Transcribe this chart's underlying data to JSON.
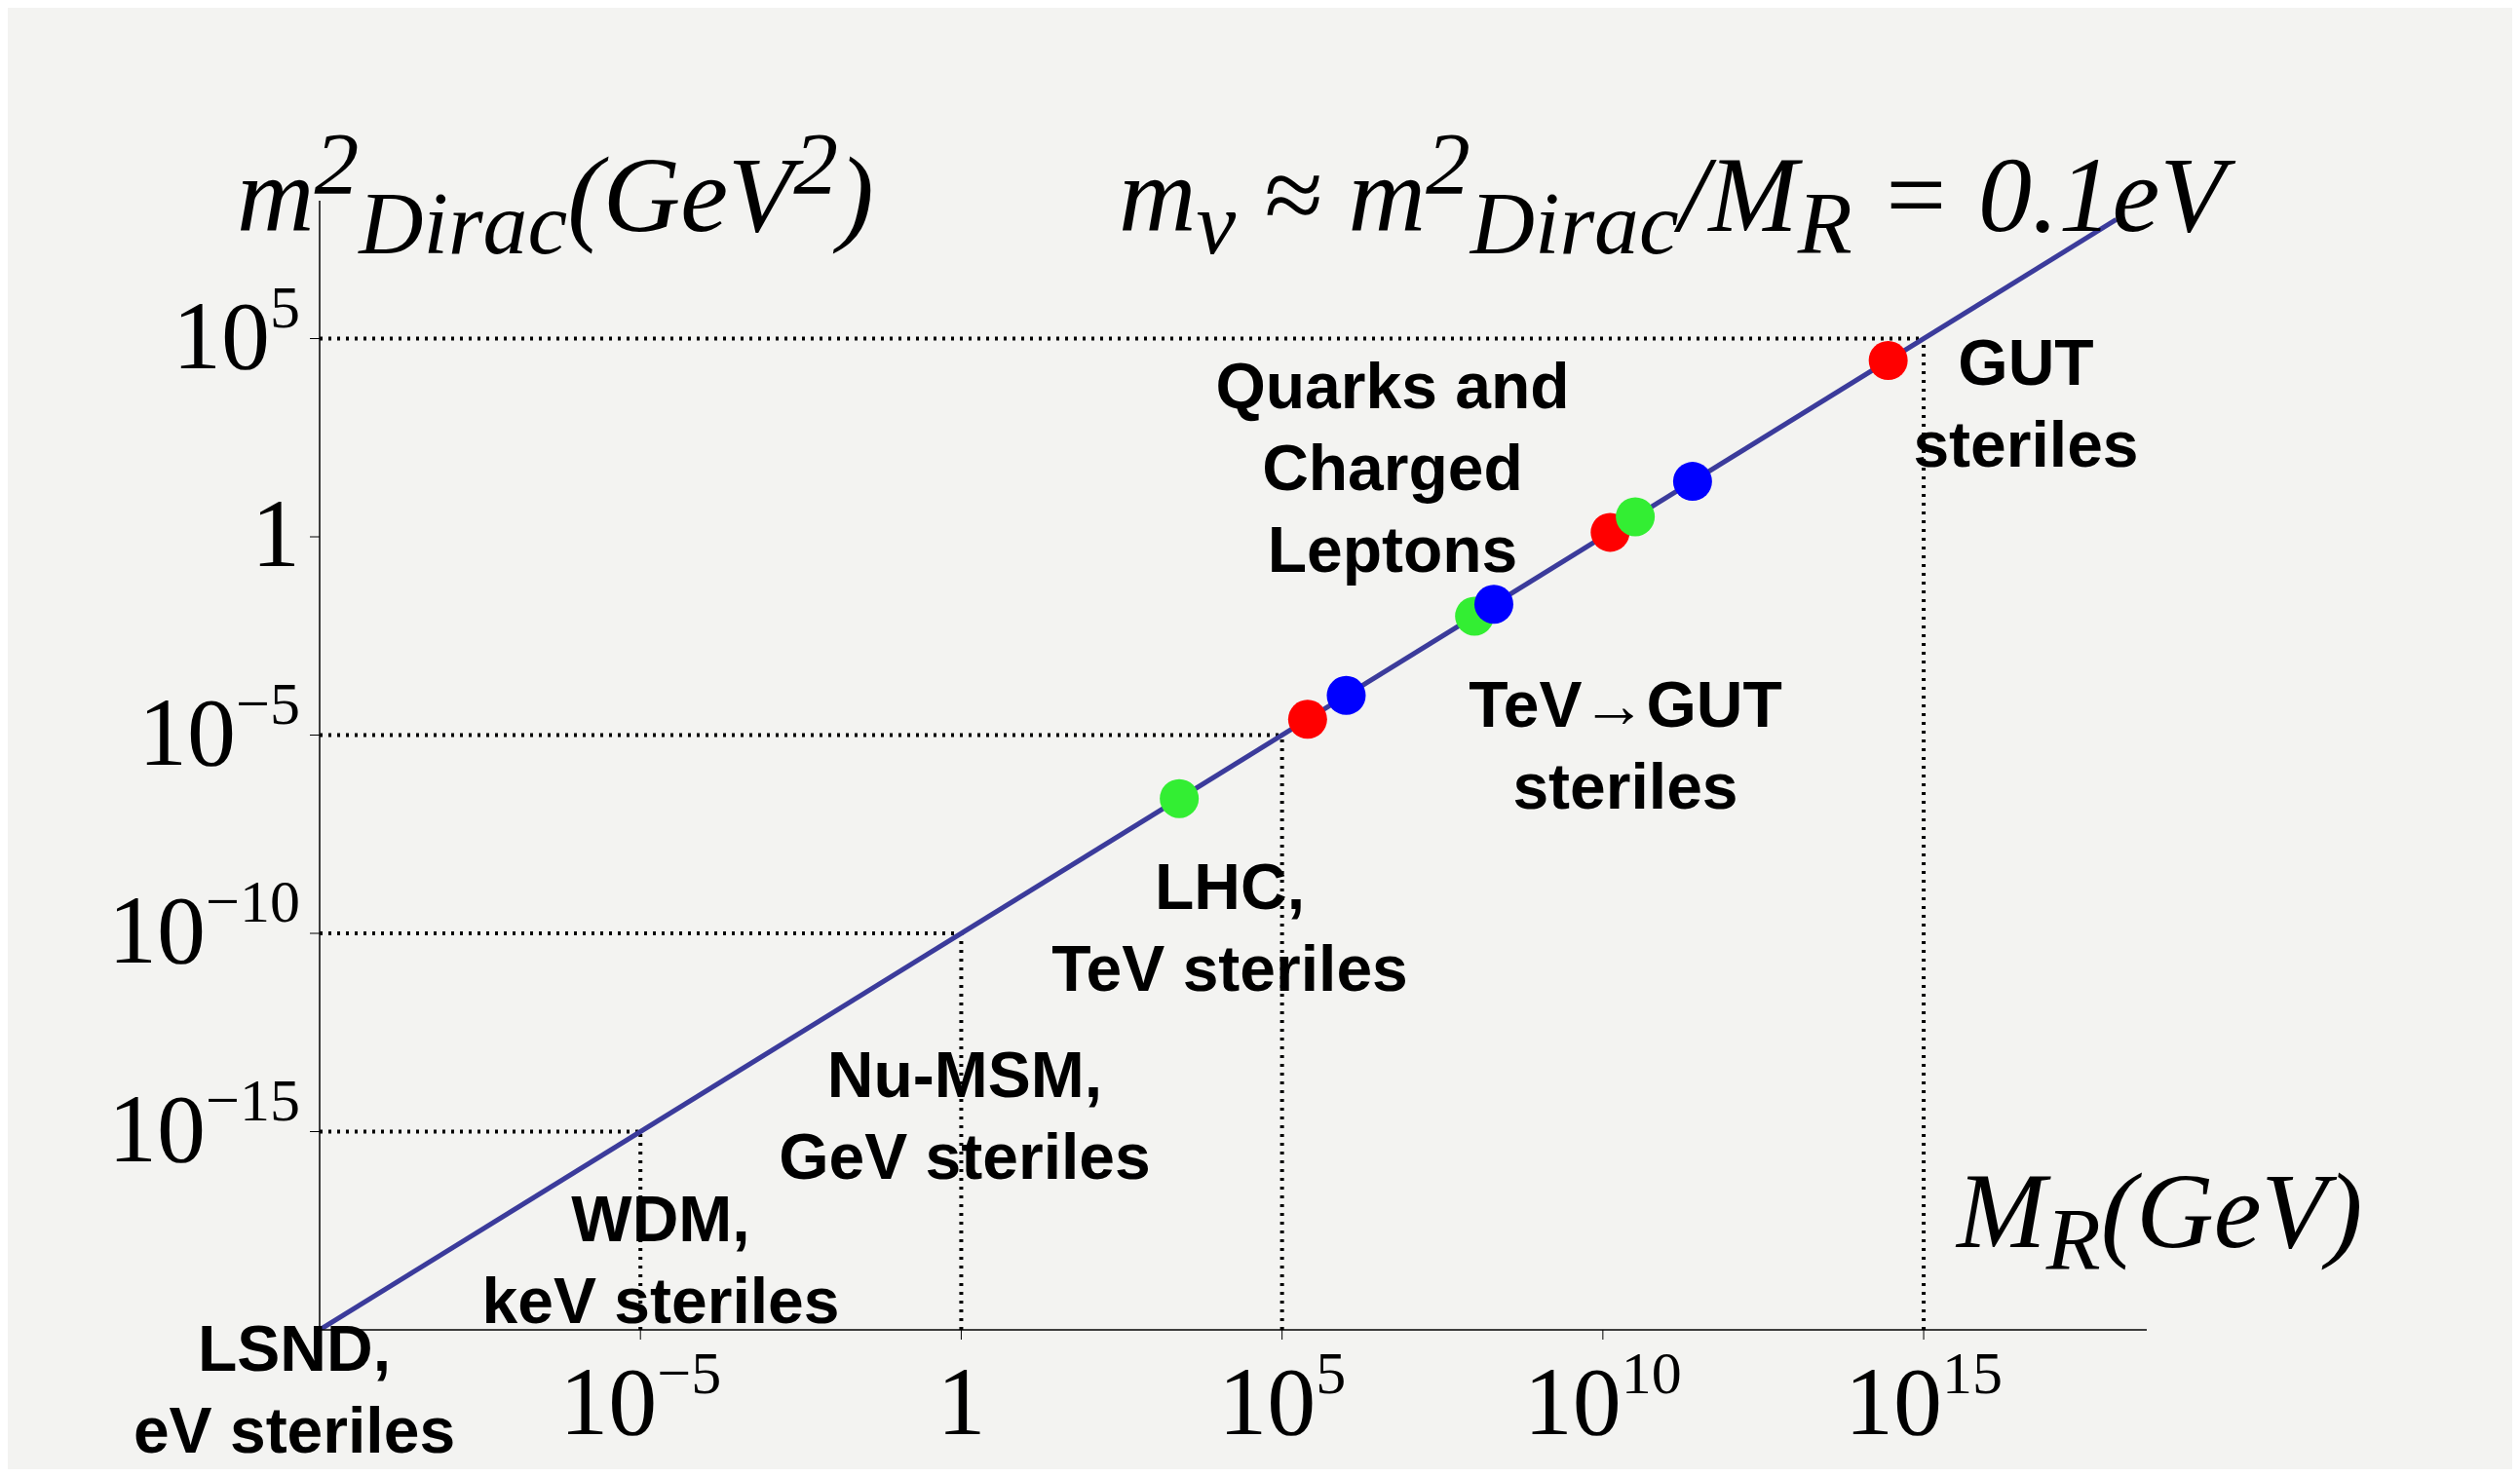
{
  "chart_data": {
    "type": "line",
    "title": "m$_{ν}$ ≈ m$^{2}$$_{Dirac}$/M$_{R}$ = 0.1eV",
    "xlabel": "M$_{R}$(GeV)",
    "ylabel": "m$^{2}$$_{Dirac}$(GeV$^{2}$)",
    "log": "xy",
    "xlim": [
      1e-10,
      3e+18
    ],
    "ylim": [
      1e-20,
      300000000.0
    ],
    "xticks": [
      {
        "value": 1e-05,
        "label": "10$^{−5}$"
      },
      1,
      {
        "value": 100000,
        "label": "10$^{5}$"
      },
      {
        "value": 10000000000,
        "label": "10$^{10}$"
      },
      {
        "value": 1000000000000000.0,
        "label": "10$^{15}$"
      }
    ],
    "yticks": [
      {
        "value": 1e-15,
        "label": "10$^{−15}$"
      },
      {
        "value": 1e-10,
        "label": "10$^{−10}$"
      },
      {
        "value": 1e-05,
        "label": "10$^{−5}$"
      },
      1,
      {
        "value": 100000,
        "label": "10$^{5}$"
      }
    ],
    "series": [
      {
        "color": "#3b3b9b",
        "marker": "none",
        "line_style": "solid",
        "x": [
          1e-10,
          1e+18
        ],
        "values": [
          1e-20,
          100000000.0
        ]
      },
      {
        "type": "scatter",
        "color": "#ff0000",
        "marker": "circle",
        "x": [
          250000,
          13000000000,
          280000000000000.0
        ],
        "values": [
          2.5e-05,
          1.3,
          28000
        ]
      },
      {
        "type": "scatter",
        "color": "#33ee33",
        "marker": "circle",
        "x": [
          2500,
          100000000,
          32000000000
        ],
        "values": [
          2.5e-07,
          0.01,
          3.2
        ]
      },
      {
        "type": "scatter",
        "color": "#0000ff",
        "marker": "circle",
        "x": [
          1000000,
          200000000,
          250000000000
        ],
        "values": [
          0.0001,
          0.02,
          25
        ]
      }
    ],
    "ref_lines": [
      {
        "axis": "x",
        "value": 1e-05,
        "color": "#000000",
        "line_style": "dotted"
      },
      {
        "axis": "x",
        "value": 1,
        "color": "#000000",
        "line_style": "dotted"
      },
      {
        "axis": "x",
        "value": 100000,
        "color": "#000000",
        "line_style": "dotted"
      },
      {
        "axis": "x",
        "value": 1000000000000000.0,
        "color": "#000000",
        "line_style": "dotted"
      },
      {
        "axis": "y",
        "value": 1e-15,
        "color": "#000000",
        "line_style": "dotted"
      },
      {
        "axis": "y",
        "value": 1e-10,
        "color": "#000000",
        "line_style": "dotted"
      },
      {
        "axis": "y",
        "value": 1e-05,
        "color": "#000000",
        "line_style": "dotted"
      },
      {
        "axis": "y",
        "value": 100000,
        "color": "#000000",
        "line_style": "dotted"
      }
    ],
    "annotations": [
      "Quarks and\nCharged\nLeptons",
      "TeV→GUT\nsteriles",
      "GUT\nsteriles",
      "LHC,\nTeV steriles",
      "Nu-MSM,\nGeV steriles",
      "WDM,\nkeV steriles",
      "LSND,\neV steriles"
    ]
  }
}
